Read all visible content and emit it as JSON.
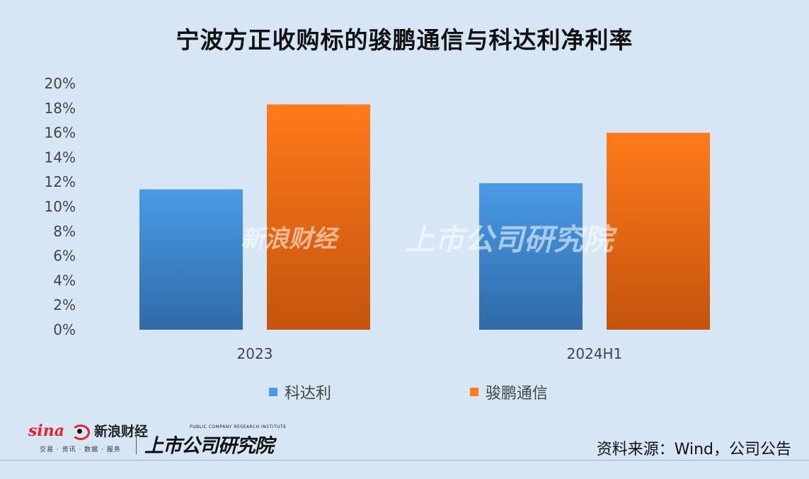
{
  "title": "宁波方正收购标的骏鹏通信与科达利净利率",
  "chart_data": {
    "type": "bar",
    "categories": [
      "2023",
      "2024H1"
    ],
    "series": [
      {
        "name": "科达利",
        "values": [
          11.4,
          11.9
        ],
        "color_top": "#4a9be6",
        "color_bottom": "#2f6aa8"
      },
      {
        "name": "骏鹏通信",
        "values": [
          18.3,
          16.0
        ],
        "color_top": "#ff7a1a",
        "color_bottom": "#c4540d"
      }
    ],
    "ylim": [
      0,
      20
    ],
    "yticks": [
      "0%",
      "2%",
      "4%",
      "6%",
      "8%",
      "10%",
      "12%",
      "14%",
      "16%",
      "18%",
      "20%"
    ],
    "ytick_values": [
      0,
      2,
      4,
      6,
      8,
      10,
      12,
      14,
      16,
      18,
      20
    ],
    "grid": false,
    "legend": "bottom"
  },
  "footer": {
    "sina_brand": "sina",
    "sina_name": "新浪财经",
    "sina_sub": "交易 · 资讯 · 数据 · 服务",
    "research_name": "上市公司研究院",
    "research_en": "PUBLIC COMPANY RESEARCH INSTITUTE",
    "source": "资料来源：Wind，公司公告"
  },
  "watermark": {
    "left": "新浪财经",
    "right": "上市公司研究院"
  }
}
